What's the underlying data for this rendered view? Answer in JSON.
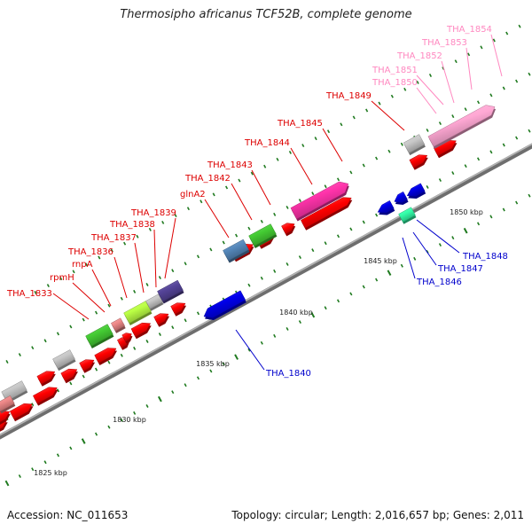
{
  "title": "Thermosipho africanus TCF52B, complete genome",
  "footer": {
    "accession": "Accession: NC_011653",
    "summary": "Topology: circular; Length: 2,016,657 bp; Genes: 2,011"
  },
  "colors": {
    "backbone": "#8c8c8c",
    "tick": "#1f7a1f",
    "cds_forward": "#ff0000",
    "cds_reverse": "#0000ee",
    "rna_light": "#ffa8d4",
    "rna_magenta": "#ff33aa",
    "label_red": "#dd0000",
    "label_blue": "#0000cc",
    "label_pink": "#ff88c0"
  },
  "scale_labels": [
    "1825 kbp",
    "1830 kbp",
    "1835 kbp",
    "1840 kbp",
    "1845 kbp",
    "1850 kbp"
  ],
  "gene_labels": [
    {
      "text": "THA_1833",
      "group": "red"
    },
    {
      "text": "rpmH",
      "group": "red"
    },
    {
      "text": "rnpA",
      "group": "red"
    },
    {
      "text": "THA_1836",
      "group": "red"
    },
    {
      "text": "THA_1837",
      "group": "red"
    },
    {
      "text": "THA_1838",
      "group": "red"
    },
    {
      "text": "THA_1839",
      "group": "red"
    },
    {
      "text": "glnA2",
      "group": "red"
    },
    {
      "text": "THA_1842",
      "group": "red"
    },
    {
      "text": "THA_1843",
      "group": "red"
    },
    {
      "text": "THA_1844",
      "group": "red"
    },
    {
      "text": "THA_1845",
      "group": "red"
    },
    {
      "text": "THA_1849",
      "group": "red"
    },
    {
      "text": "THA_1850",
      "group": "pink"
    },
    {
      "text": "THA_1851",
      "group": "pink"
    },
    {
      "text": "THA_1852",
      "group": "pink"
    },
    {
      "text": "THA_1853",
      "group": "pink"
    },
    {
      "text": "THA_1854",
      "group": "pink"
    },
    {
      "text": "THA_1840",
      "group": "blue"
    },
    {
      "text": "THA_1846",
      "group": "blue"
    },
    {
      "text": "THA_1847",
      "group": "blue"
    },
    {
      "text": "THA_1848",
      "group": "blue"
    }
  ]
}
